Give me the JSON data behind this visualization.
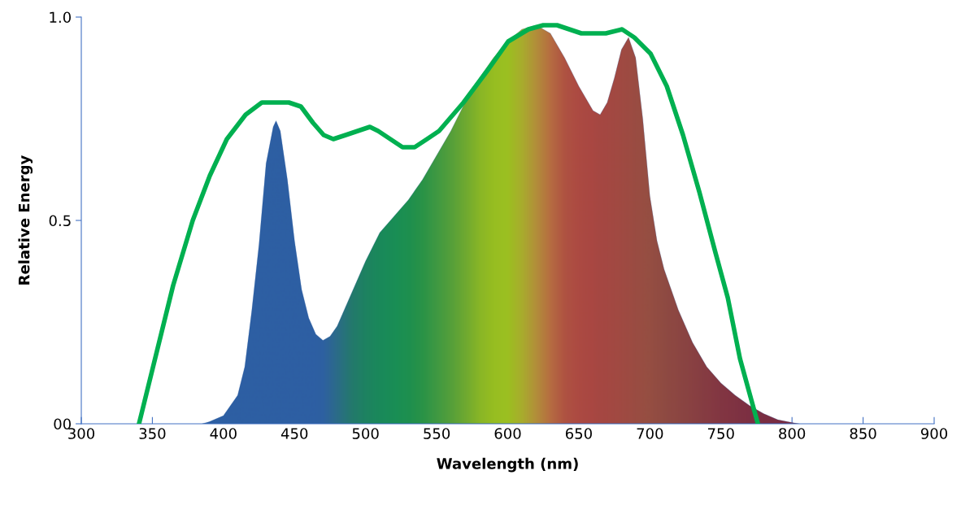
{
  "chart_data": {
    "type": "area",
    "xlabel": "Wavelength (nm)",
    "ylabel": "Relative Energy",
    "xlim": [
      300,
      900
    ],
    "xticks": [
      300,
      350,
      400,
      450,
      500,
      550,
      600,
      650,
      700,
      750,
      800,
      850,
      900
    ],
    "ylim": [
      0,
      1
    ],
    "yticks": [
      {
        "value": 0,
        "label": "00"
      },
      0.5,
      {
        "value": 1,
        "label": "1.0"
      }
    ],
    "grid": false,
    "legend": false,
    "series": [
      {
        "type": "area",
        "color": "#2e5fa3",
        "x": [
          385,
          390,
          400,
          410,
          415,
          420,
          425,
          430,
          435,
          437,
          440,
          445,
          450,
          455,
          460,
          465,
          470,
          475,
          480,
          490,
          500,
          510,
          520,
          530,
          540,
          550,
          560,
          570,
          580,
          590,
          600,
          610,
          620,
          630,
          640,
          650,
          660,
          665,
          670,
          675,
          680,
          685,
          690,
          695,
          700,
          705,
          710,
          720,
          730,
          740,
          750,
          760,
          770,
          780,
          790,
          800,
          805
        ],
        "values": [
          0,
          0.005,
          0.02,
          0.07,
          0.14,
          0.28,
          0.44,
          0.64,
          0.73,
          0.745,
          0.72,
          0.6,
          0.45,
          0.33,
          0.26,
          0.22,
          0.205,
          0.215,
          0.24,
          0.32,
          0.4,
          0.47,
          0.51,
          0.55,
          0.6,
          0.66,
          0.72,
          0.79,
          0.85,
          0.9,
          0.94,
          0.97,
          0.98,
          0.96,
          0.9,
          0.83,
          0.77,
          0.76,
          0.79,
          0.85,
          0.92,
          0.95,
          0.9,
          0.75,
          0.56,
          0.45,
          0.38,
          0.28,
          0.2,
          0.14,
          0.1,
          0.07,
          0.045,
          0.025,
          0.01,
          0.003,
          0
        ],
        "colors": [
          "#2e5fa3",
          "#2e5fa3",
          "#2e5fa3",
          "#2e5fa3",
          "#2e5fa3",
          "#2e5fa3",
          "#2e5fa3",
          "#2e5fa3",
          "#2e5fa3",
          "#2e5fa3",
          "#2e5fa3",
          "#2e5fa3",
          "#2e5fa3",
          "#2e5fa3",
          "#2e5fa3",
          "#2e5fa3",
          "#2e62a0",
          "#2d6890",
          "#2b7080",
          "#22805f",
          "#1a8c50",
          "#169448",
          "#159a42",
          "#1a9c3a",
          "#2aa030",
          "#45a82a",
          "#60b020",
          "#80bc14",
          "#a0cc08",
          "#b2d600",
          "#b8d800",
          "#c8c010",
          "#d49a20",
          "#d87028",
          "#d0502a",
          "#cc452a",
          "#c8422a",
          "#c4422a",
          "#c2432a",
          "#c0442a",
          "#bd452a",
          "#ba462a",
          "#b6482a",
          "#b34a2a",
          "#b04a2a",
          "#ac482a",
          "#a8462a",
          "#a4402a",
          "#a03a2a",
          "#9c332a",
          "#982c2a",
          "#94282a",
          "#90242a",
          "#8e222a",
          "#8c202a",
          "#8a1f2a",
          "#8a1f2a"
        ]
      },
      {
        "type": "line",
        "color": "#00b050",
        "x": [
          340.6,
          364.6,
          378.4,
          390.4,
          402.4,
          415.6,
          427,
          437.3,
          446,
          454.5,
          463,
          470.5,
          477.3,
          486,
          494.5,
          503,
          508.8,
          517.4,
          526,
          534.5,
          543.2,
          551.7,
          568.9,
          586,
          600.3,
          614.6,
          625,
          634.7,
          651.8,
          669,
          680.4,
          689,
          700.5,
          711.9,
          723.3,
          734.8,
          746.2,
          754.8,
          763.4,
          776
        ],
        "values": [
          0,
          0.34,
          0.5,
          0.61,
          0.7,
          0.76,
          0.79,
          0.79,
          0.79,
          0.78,
          0.74,
          0.71,
          0.7,
          0.71,
          0.72,
          0.73,
          0.72,
          0.7,
          0.68,
          0.68,
          0.7,
          0.72,
          0.79,
          0.87,
          0.94,
          0.97,
          0.98,
          0.98,
          0.96,
          0.96,
          0.97,
          0.95,
          0.91,
          0.83,
          0.71,
          0.57,
          0.42,
          0.31,
          0.16,
          0
        ]
      }
    ]
  }
}
